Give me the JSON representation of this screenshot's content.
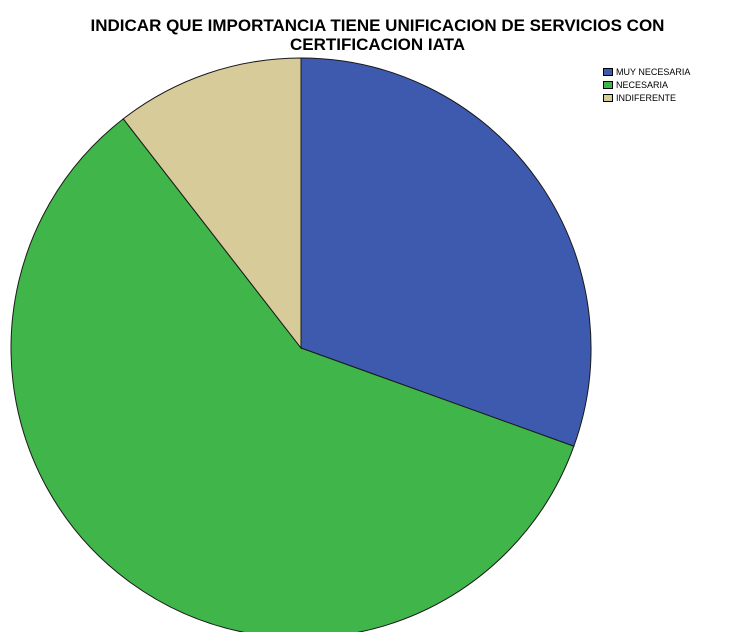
{
  "chart_data": {
    "type": "pie",
    "title_lines": [
      "INDICAR QUE IMPORTANCIA TIENE UNIFICACION DE SERVICIOS CON",
      "CERTIFICACION IATA"
    ],
    "categories": [
      "MUY NECESARIA",
      "NECESARIA",
      "INDIFERENTE"
    ],
    "values": [
      30.5,
      59.0,
      10.5
    ],
    "colors": [
      "#3d5aae",
      "#3fb54a",
      "#d8cb9a"
    ],
    "start_angle_deg": 0,
    "direction": "clockwise",
    "legend_position": "top-right"
  }
}
